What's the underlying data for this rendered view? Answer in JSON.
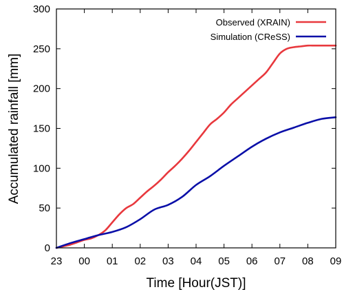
{
  "chart_data": {
    "type": "line",
    "xlabel": "Time  [Hour(JST)]",
    "ylabel": "Accumulated rainfall [mm]",
    "x_tick_labels": [
      "23",
      "00",
      "01",
      "02",
      "03",
      "04",
      "05",
      "06",
      "07",
      "08",
      "09"
    ],
    "y_ticks": [
      0,
      50,
      100,
      150,
      200,
      250,
      300
    ],
    "xlim": [
      0,
      10
    ],
    "ylim": [
      0,
      300
    ],
    "grid": false,
    "legend_position": "top-right",
    "series": [
      {
        "name": "Observed (XRAIN)",
        "color": "#e8383d",
        "x": [
          0,
          0.25,
          0.5,
          0.75,
          1,
          1.25,
          1.5,
          1.75,
          2,
          2.25,
          2.5,
          2.75,
          3,
          3.25,
          3.5,
          3.75,
          4,
          4.25,
          4.5,
          4.75,
          5,
          5.25,
          5.5,
          5.75,
          6,
          6.25,
          6.5,
          6.75,
          7,
          7.25,
          7.5,
          7.75,
          8,
          8.25,
          8.5,
          8.75,
          9,
          9.25,
          9.5,
          9.75,
          10
        ],
        "y": [
          0,
          2,
          4,
          7,
          10,
          12,
          16,
          22,
          32,
          42,
          50,
          55,
          63,
          71,
          78,
          86,
          95,
          103,
          112,
          122,
          133,
          144,
          155,
          162,
          170,
          180,
          188,
          196,
          204,
          212,
          220,
          232,
          244,
          250,
          252,
          253,
          254,
          254,
          254,
          254,
          254
        ],
        "y_note": "disabled"
      },
      {
        "name": "Simulation (CReSS)",
        "color": "#0a0fa8",
        "x": [
          0,
          0.5,
          1,
          1.5,
          2,
          2.5,
          3,
          3.5,
          4,
          4.5,
          5,
          5.5,
          6,
          6.5,
          7,
          7.5,
          8,
          8.5,
          9,
          9.5,
          10
        ],
        "y": [
          0,
          6,
          11,
          16,
          20,
          26,
          36,
          48,
          54,
          64,
          79,
          90,
          103,
          115,
          127,
          137,
          145,
          151,
          157,
          162,
          164
        ]
      }
    ]
  }
}
